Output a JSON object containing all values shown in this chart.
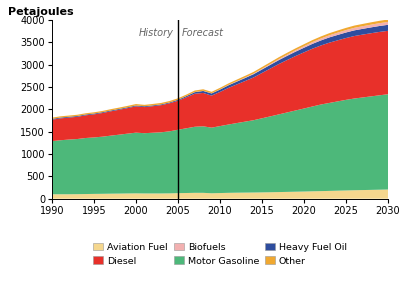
{
  "years": [
    1990,
    1991,
    1992,
    1993,
    1994,
    1995,
    1996,
    1997,
    1998,
    1999,
    2000,
    2001,
    2002,
    2003,
    2004,
    2005,
    2006,
    2007,
    2008,
    2009,
    2010,
    2011,
    2012,
    2013,
    2014,
    2015,
    2016,
    2017,
    2018,
    2019,
    2020,
    2021,
    2022,
    2023,
    2024,
    2025,
    2026,
    2027,
    2028,
    2029,
    2030
  ],
  "aviation_fuel": [
    100,
    100,
    100,
    102,
    105,
    108,
    110,
    113,
    115,
    118,
    120,
    118,
    118,
    118,
    120,
    125,
    128,
    132,
    132,
    122,
    127,
    132,
    135,
    137,
    139,
    142,
    145,
    149,
    153,
    157,
    161,
    166,
    170,
    175,
    180,
    185,
    190,
    194,
    198,
    202,
    206
  ],
  "motor_gasoline": [
    1190,
    1210,
    1225,
    1235,
    1255,
    1265,
    1280,
    1300,
    1320,
    1340,
    1360,
    1350,
    1360,
    1370,
    1390,
    1420,
    1450,
    1480,
    1490,
    1470,
    1500,
    1530,
    1560,
    1590,
    1620,
    1660,
    1700,
    1740,
    1780,
    1820,
    1860,
    1900,
    1940,
    1970,
    2000,
    2030,
    2055,
    2075,
    2095,
    2115,
    2135
  ],
  "diesel": [
    480,
    490,
    492,
    498,
    508,
    517,
    530,
    545,
    558,
    572,
    590,
    585,
    595,
    608,
    628,
    650,
    695,
    740,
    748,
    718,
    765,
    820,
    865,
    910,
    958,
    1015,
    1072,
    1128,
    1175,
    1220,
    1258,
    1295,
    1322,
    1350,
    1368,
    1385,
    1400,
    1408,
    1415,
    1420,
    1420
  ],
  "heavy_fuel_oil": [
    18,
    18,
    18,
    18,
    18,
    18,
    18,
    18,
    18,
    18,
    18,
    18,
    18,
    18,
    18,
    22,
    26,
    35,
    44,
    48,
    53,
    58,
    63,
    68,
    73,
    78,
    83,
    88,
    93,
    98,
    103,
    108,
    113,
    118,
    121,
    124,
    127,
    129,
    131,
    133,
    135
  ],
  "biofuels": [
    0,
    0,
    0,
    0,
    0,
    0,
    0,
    0,
    0,
    0,
    0,
    0,
    0,
    0,
    0,
    0,
    1,
    3,
    4,
    4,
    5,
    7,
    9,
    11,
    13,
    16,
    19,
    23,
    27,
    31,
    35,
    39,
    43,
    47,
    51,
    54,
    57,
    59,
    61,
    63,
    65
  ],
  "other": [
    28,
    28,
    28,
    28,
    28,
    28,
    28,
    30,
    31,
    32,
    33,
    32,
    32,
    32,
    33,
    33,
    33,
    34,
    34,
    33,
    34,
    35,
    36,
    37,
    38,
    39,
    40,
    41,
    42,
    43,
    44,
    45,
    46,
    47,
    48,
    49,
    50,
    51,
    52,
    53,
    54
  ],
  "history_end_year": 2005,
  "colors": {
    "aviation_fuel": "#f5d78e",
    "motor_gasoline": "#4db87a",
    "diesel": "#e8302a",
    "heavy_fuel_oil": "#2e4d9e",
    "biofuels": "#f2b0b0",
    "other": "#f0a830"
  },
  "ylabel": "Petajoules",
  "ylim": [
    0,
    4000
  ],
  "yticks": [
    0,
    500,
    1000,
    1500,
    2000,
    2500,
    3000,
    3500,
    4000
  ],
  "xlim": [
    1990,
    2030
  ],
  "xticks": [
    1990,
    1995,
    2000,
    2005,
    2010,
    2015,
    2020,
    2025,
    2030
  ],
  "history_label": "History",
  "forecast_label": "Forecast",
  "legend_row1": [
    {
      "label": "Aviation Fuel",
      "color": "#f5d78e"
    },
    {
      "label": "Diesel",
      "color": "#e8302a"
    },
    {
      "label": "Biofuels",
      "color": "#f2b0b0"
    }
  ],
  "legend_row2": [
    {
      "label": "Motor Gasoline",
      "color": "#4db87a"
    },
    {
      "label": "Heavy Fuel Oil",
      "color": "#2e4d9e"
    },
    {
      "label": "Other",
      "color": "#f0a830"
    }
  ]
}
